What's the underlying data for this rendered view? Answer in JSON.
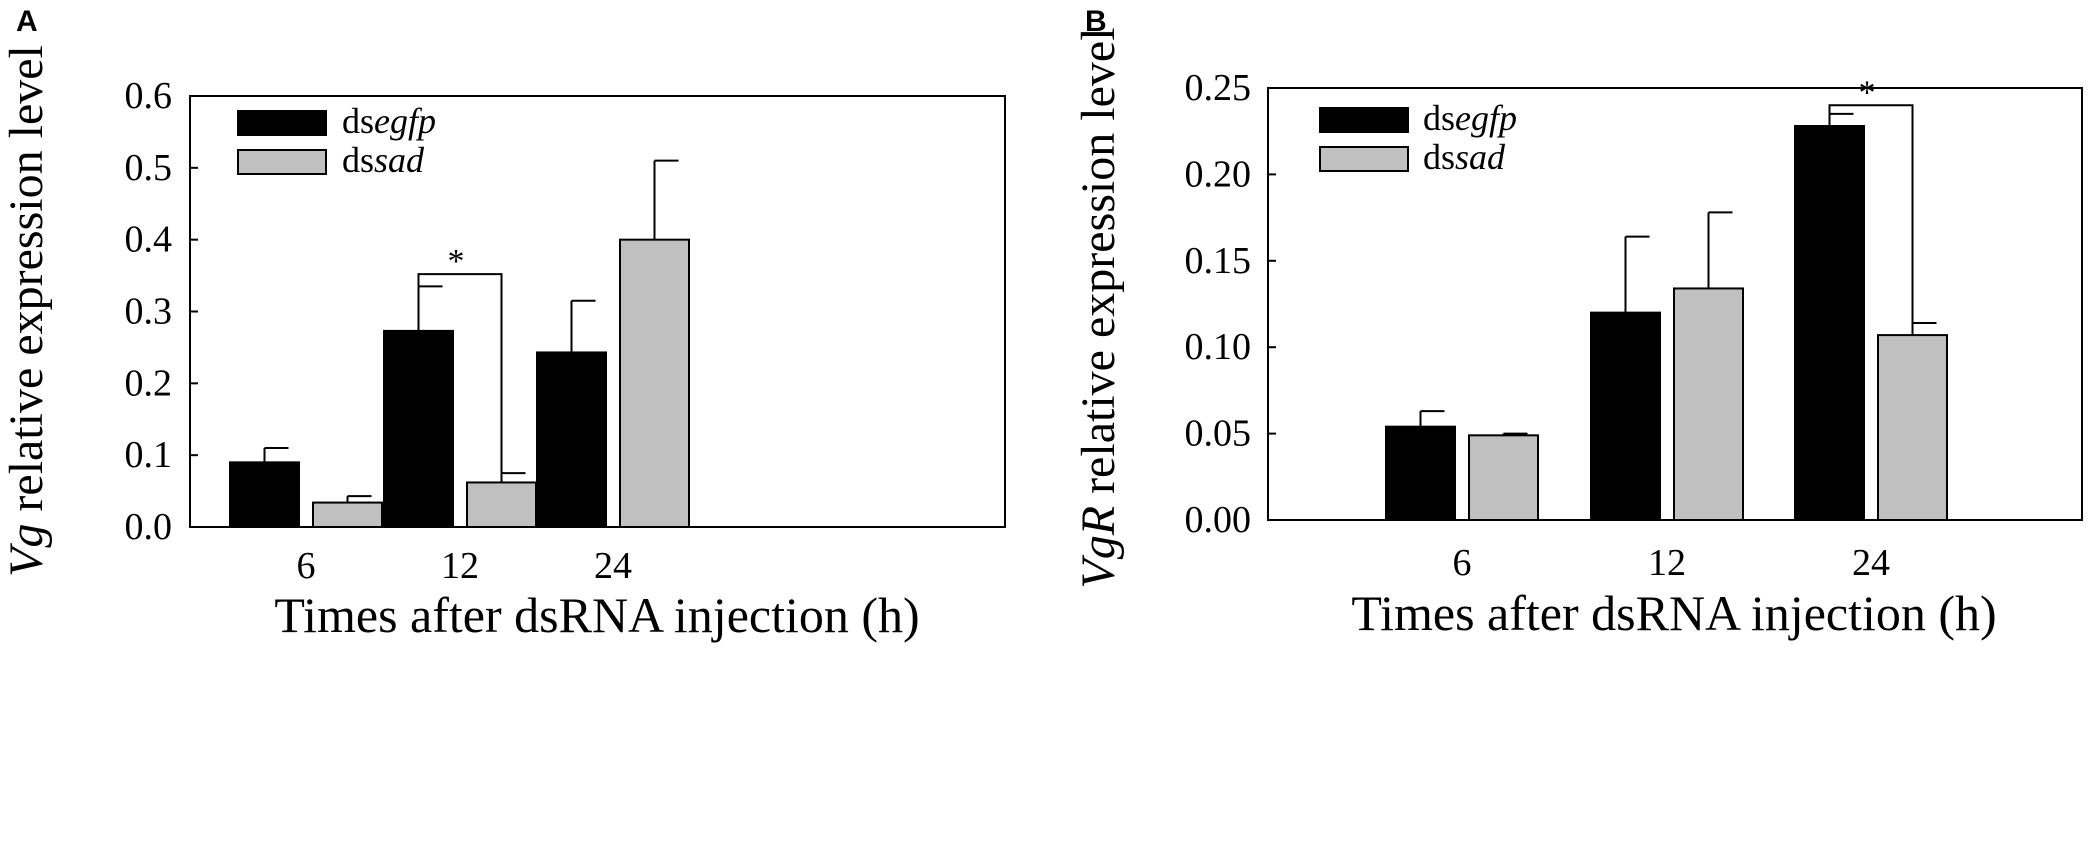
{
  "chart_data": [
    {
      "panel_label": "A",
      "type": "bar",
      "xlabel": "Times after dsRNA injection (h)",
      "ylabel_italic": "Vg",
      "ylabel_rest": " relative expression level",
      "categories": [
        "6",
        "12",
        "24"
      ],
      "ylim": [
        0,
        0.6
      ],
      "yticks": [
        0.0,
        0.1,
        0.2,
        0.3,
        0.4,
        0.5,
        0.6
      ],
      "ytick_labels": [
        "0.0",
        "0.1",
        "0.2",
        "0.3",
        "0.4",
        "0.5",
        "0.6"
      ],
      "legend_position": "top-left",
      "series": [
        {
          "name_prefix": "ds",
          "name_italic": "egfp",
          "color": "#000000",
          "values": [
            0.09,
            0.273,
            0.243
          ],
          "errors": [
            0.02,
            0.062,
            0.072
          ]
        },
        {
          "name_prefix": "ds",
          "name_italic": "sad",
          "color": "#c0c0c0",
          "values": [
            0.034,
            0.062,
            0.4
          ],
          "errors": [
            0.009,
            0.013,
            0.11
          ]
        }
      ],
      "significance": [
        {
          "category_index": 1,
          "label": "*",
          "y": 0.352
        }
      ]
    },
    {
      "panel_label": "B",
      "type": "bar",
      "xlabel": "Times after dsRNA injection (h)",
      "ylabel_italic": "VgR",
      "ylabel_rest": " relative expression level",
      "categories": [
        "6",
        "12",
        "24"
      ],
      "ylim": [
        0,
        0.25
      ],
      "yticks": [
        0.0,
        0.05,
        0.1,
        0.15,
        0.2,
        0.25
      ],
      "ytick_labels": [
        "0.00",
        "0.05",
        "0.10",
        "0.15",
        "0.20",
        "0.25"
      ],
      "legend_position": "top-left",
      "series": [
        {
          "name_prefix": "ds",
          "name_italic": "egfp",
          "color": "#000000",
          "values": [
            0.054,
            0.12,
            0.228
          ],
          "errors": [
            0.009,
            0.044,
            0.007
          ]
        },
        {
          "name_prefix": "ds",
          "name_italic": "sad",
          "color": "#c0c0c0",
          "values": [
            0.049,
            0.134,
            0.107
          ],
          "errors": [
            0.001,
            0.044,
            0.007
          ]
        }
      ],
      "significance": [
        {
          "category_index": 2,
          "label": "*",
          "y": 0.24
        }
      ]
    }
  ]
}
